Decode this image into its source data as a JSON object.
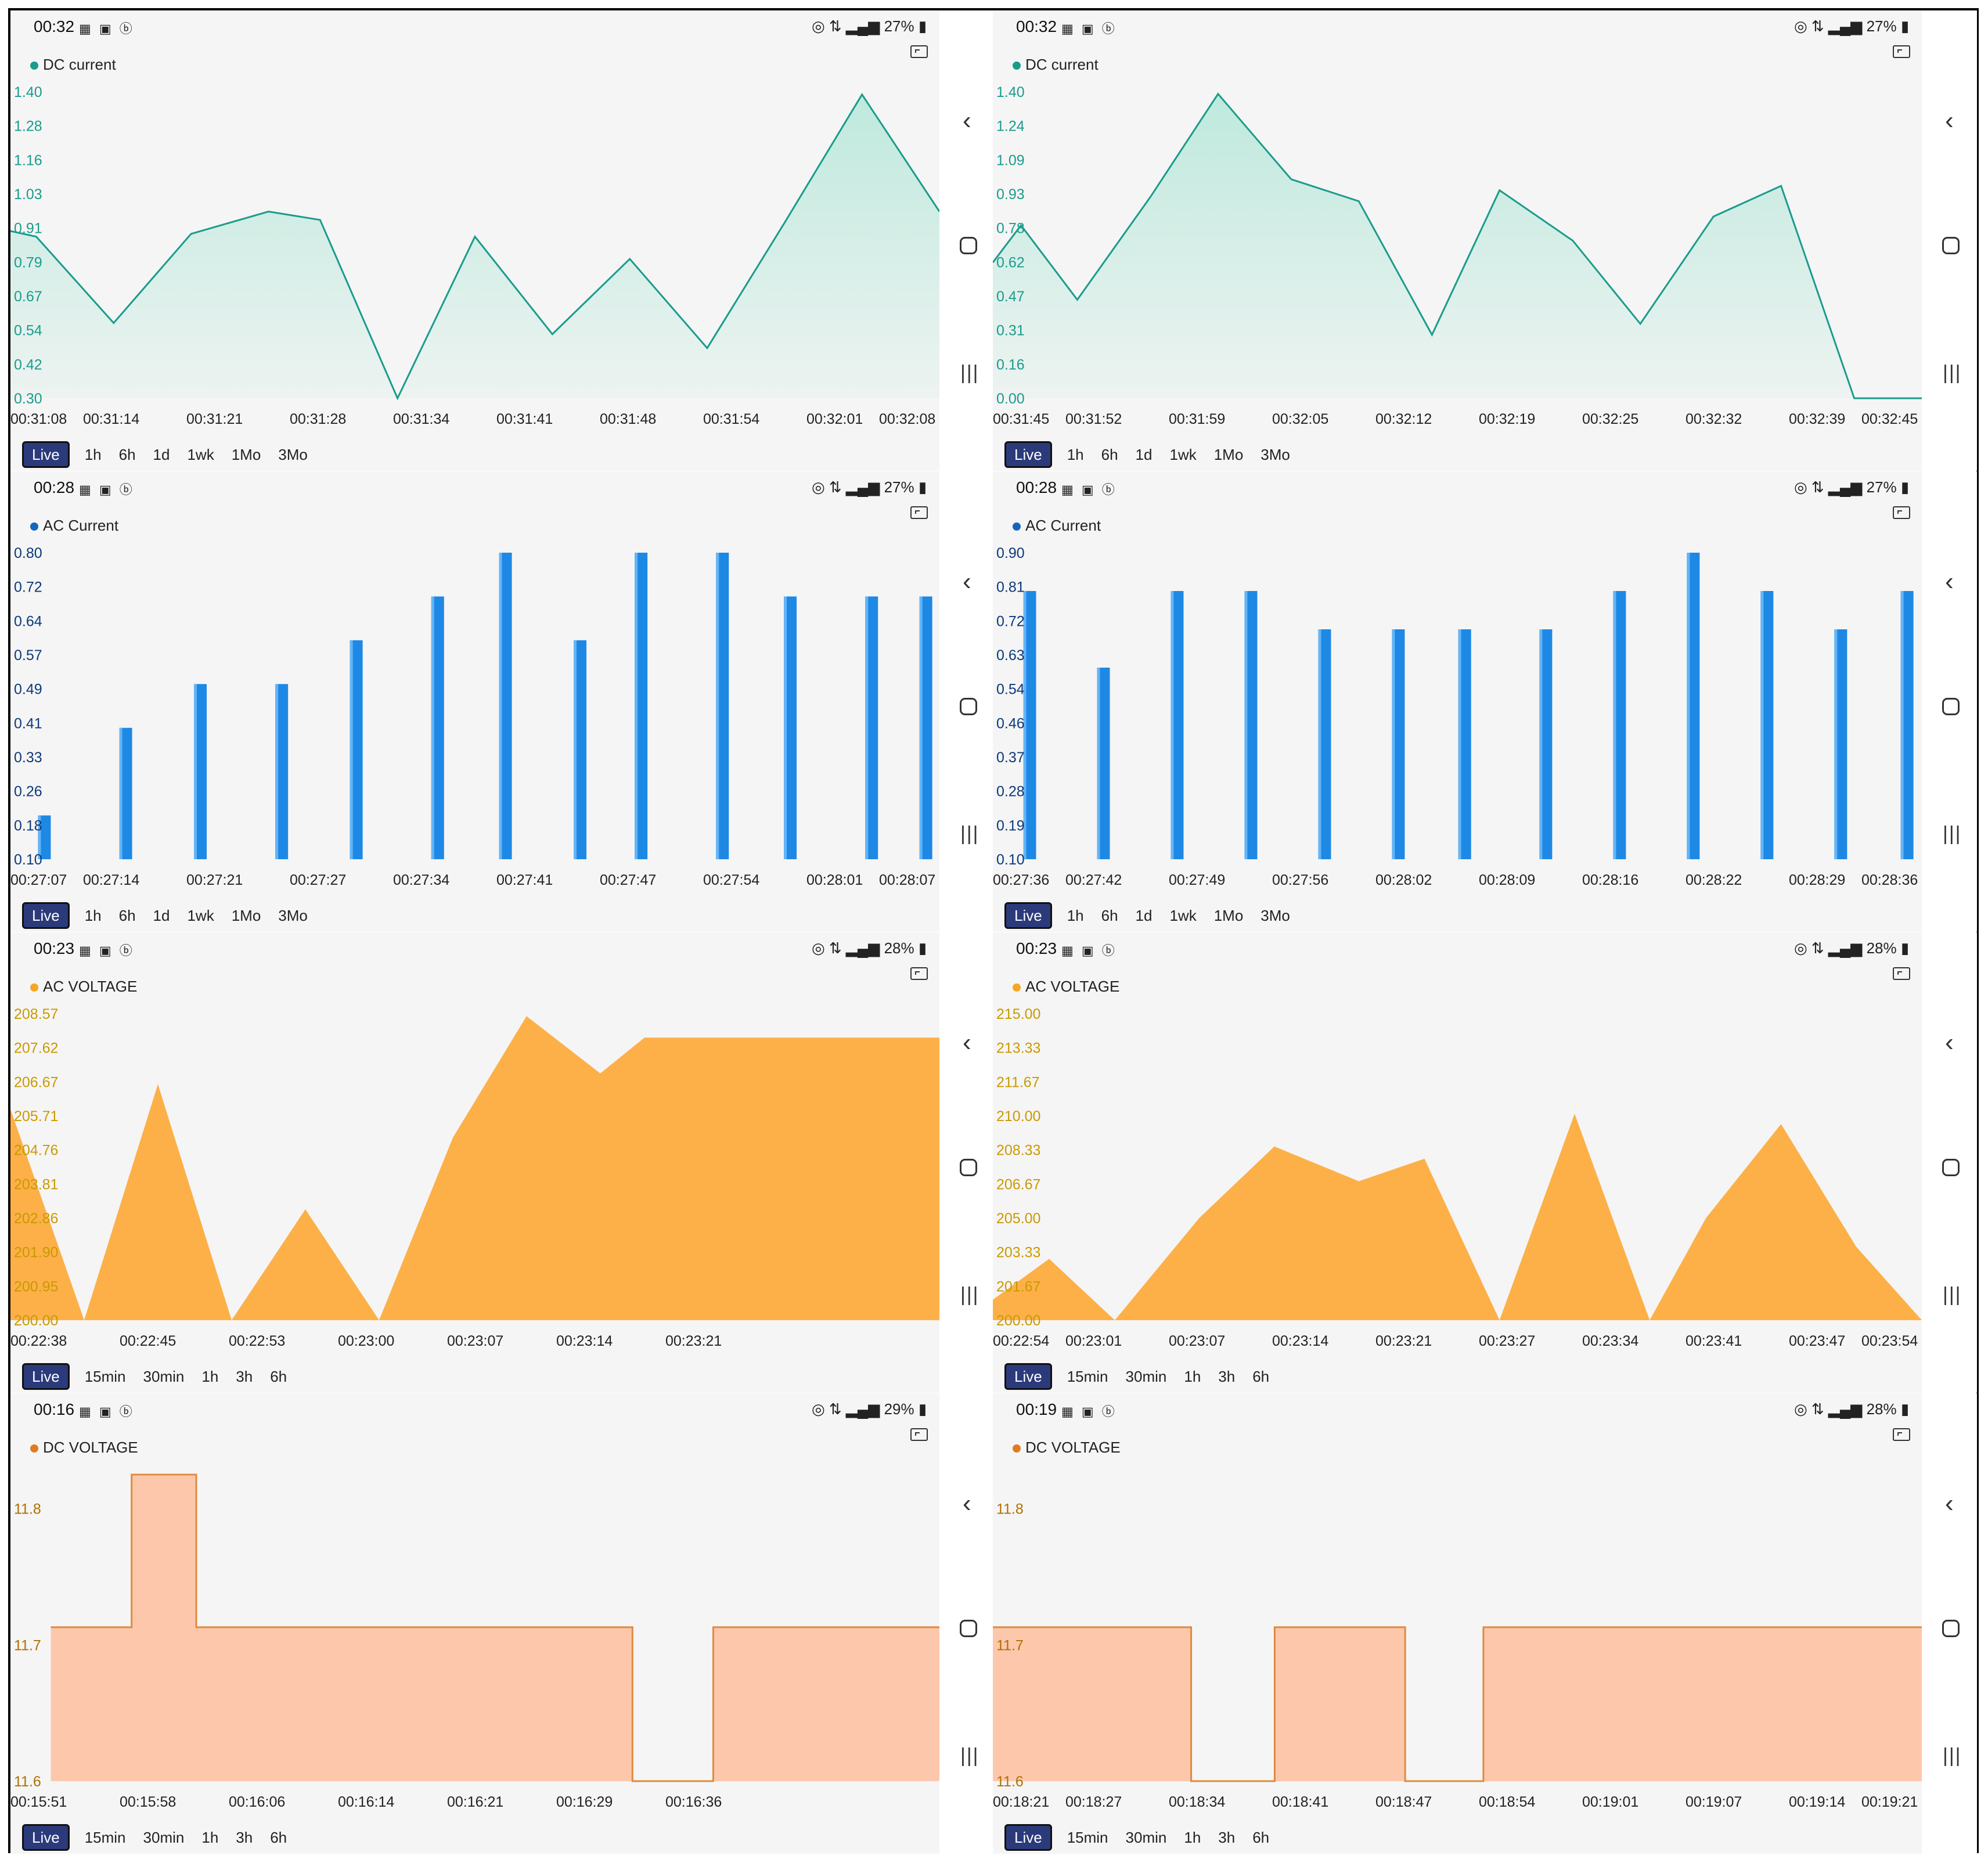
{
  "panels": [
    {
      "id": "dc-current-1",
      "status": {
        "time": "00:32",
        "battery": "27%"
      },
      "legend": "DC current",
      "ranges": [
        "Live",
        "1h",
        "6h",
        "1d",
        "1wk",
        "1Mo",
        "3Mo"
      ],
      "colors": {
        "dot": "#1a9c8c",
        "line": "#1a9c8c",
        "fill": "#bfe9dd",
        "tick": "#1a9c8c"
      },
      "chart_data": {
        "type": "area",
        "title": "DC current",
        "yticks": [
          "1.40",
          "1.28",
          "1.16",
          "1.03",
          "0.91",
          "0.79",
          "0.67",
          "0.54",
          "0.42",
          "0.30"
        ],
        "ylim": [
          0.3,
          1.4
        ],
        "xticks": [
          "00:31:08",
          "00:31:14",
          "00:31:21",
          "00:31:28",
          "00:31:34",
          "00:31:41",
          "00:31:48",
          "00:31:54",
          "00:32:01",
          "00:32:08"
        ],
        "x": [
          0,
          0.5,
          2,
          3.5,
          5,
          6,
          7.5,
          9,
          10.5,
          12,
          13.5,
          15,
          16.5,
          18
        ],
        "values": [
          0.9,
          0.88,
          0.57,
          0.89,
          0.97,
          0.94,
          0.3,
          0.88,
          0.53,
          0.8,
          0.48,
          0.93,
          1.39,
          0.97
        ]
      }
    },
    {
      "id": "dc-current-2",
      "status": {
        "time": "00:32",
        "battery": "27%"
      },
      "legend": "DC current",
      "ranges": [
        "Live",
        "1h",
        "6h",
        "1d",
        "1wk",
        "1Mo",
        "3Mo"
      ],
      "colors": {
        "dot": "#1a9c8c",
        "line": "#1a9c8c",
        "fill": "#bfe9dd",
        "tick": "#1a9c8c"
      },
      "chart_data": {
        "type": "area",
        "title": "DC current",
        "yticks": [
          "1.40",
          "1.24",
          "1.09",
          "0.93",
          "0.78",
          "0.62",
          "0.47",
          "0.31",
          "0.16",
          "0.00"
        ],
        "ylim": [
          0.0,
          1.4
        ],
        "xticks": [
          "00:31:45",
          "00:31:52",
          "00:31:59",
          "00:32:05",
          "00:32:12",
          "00:32:19",
          "00:32:25",
          "00:32:32",
          "00:32:39",
          "00:32:45"
        ],
        "x": [
          0,
          0.5,
          1.5,
          2.8,
          4,
          5.3,
          6.5,
          7.8,
          9,
          10.3,
          11.5,
          12.8,
          14,
          15.3,
          16.5
        ],
        "values": [
          0.62,
          0.79,
          0.45,
          0.92,
          1.39,
          1.0,
          0.9,
          0.29,
          0.95,
          0.72,
          0.34,
          0.83,
          0.97,
          0.0,
          0.0
        ]
      }
    },
    {
      "id": "ac-current-1",
      "status": {
        "time": "00:28",
        "battery": "27%"
      },
      "legend": "AC Current",
      "ranges": [
        "Live",
        "1h",
        "6h",
        "1d",
        "1wk",
        "1Mo",
        "3Mo"
      ],
      "colors": {
        "dot": "#1565c0",
        "bar": "#1e88e5",
        "tick": "#0d3a7a"
      },
      "chart_data": {
        "type": "bar",
        "title": "AC Current",
        "yticks": [
          "0.80",
          "0.72",
          "0.64",
          "0.57",
          "0.49",
          "0.41",
          "0.33",
          "0.26",
          "0.18",
          "0.10"
        ],
        "ylim": [
          0.1,
          0.8
        ],
        "xticks": [
          "00:27:07",
          "00:27:14",
          "00:27:21",
          "00:27:27",
          "00:27:34",
          "00:27:41",
          "00:27:47",
          "00:27:54",
          "00:28:01",
          "00:28:07"
        ],
        "x": [
          0.5,
          1.7,
          2.8,
          4.0,
          5.1,
          6.3,
          7.3,
          8.4,
          9.3,
          10.5,
          11.5,
          12.7,
          13.5
        ],
        "values": [
          0.2,
          0.4,
          0.5,
          0.5,
          0.6,
          0.7,
          0.8,
          0.6,
          0.8,
          0.8,
          0.7,
          0.7,
          0.7
        ]
      }
    },
    {
      "id": "ac-current-2",
      "status": {
        "time": "00:28",
        "battery": "27%"
      },
      "legend": "AC Current",
      "ranges": [
        "Live",
        "1h",
        "6h",
        "1d",
        "1wk",
        "1Mo",
        "3Mo"
      ],
      "colors": {
        "dot": "#1565c0",
        "bar": "#1e88e5",
        "tick": "#0d3a7a"
      },
      "chart_data": {
        "type": "bar",
        "title": "AC Current",
        "yticks": [
          "0.90",
          "0.81",
          "0.72",
          "0.63",
          "0.54",
          "0.46",
          "0.37",
          "0.28",
          "0.19",
          "0.10"
        ],
        "ylim": [
          0.1,
          0.9
        ],
        "xticks": [
          "00:27:36",
          "00:27:42",
          "00:27:49",
          "00:27:56",
          "00:28:02",
          "00:28:09",
          "00:28:16",
          "00:28:22",
          "00:28:29",
          "00:28:36"
        ],
        "x": [
          0.5,
          1.5,
          2.5,
          3.5,
          4.5,
          5.5,
          6.4,
          7.5,
          8.5,
          9.5,
          10.5,
          11.5,
          12.4
        ],
        "values": [
          0.8,
          0.6,
          0.8,
          0.8,
          0.7,
          0.7,
          0.7,
          0.7,
          0.8,
          0.9,
          0.8,
          0.7,
          0.8
        ]
      }
    },
    {
      "id": "ac-voltage-1",
      "status": {
        "time": "00:23",
        "battery": "28%"
      },
      "legend": "AC VOLTAGE",
      "ranges": [
        "Live",
        "15min",
        "30min",
        "1h",
        "3h",
        "6h"
      ],
      "colors": {
        "dot": "#f5a623",
        "fill": "#fdb048",
        "tick": "#c99a00"
      },
      "chart_data": {
        "type": "area",
        "title": "AC VOLTAGE",
        "yticks": [
          "208.57",
          "207.62",
          "206.67",
          "205.71",
          "204.76",
          "203.81",
          "202.86",
          "201.90",
          "200.95",
          "200.00"
        ],
        "ylim": [
          200.0,
          208.57
        ],
        "xticks": [
          "00:22:38",
          "00:22:45",
          "00:22:53",
          "00:23:00",
          "00:23:07",
          "00:23:14",
          "00:23:21"
        ],
        "x": [
          0,
          1,
          2,
          3,
          4,
          5,
          6,
          7,
          8,
          8.6,
          9.6,
          10.6,
          11.6,
          12.6
        ],
        "values": [
          205.9,
          200.0,
          206.6,
          200.0,
          203.1,
          200.0,
          205.1,
          208.5,
          206.9,
          207.9,
          207.9,
          207.9,
          207.9,
          207.9
        ]
      }
    },
    {
      "id": "ac-voltage-2",
      "status": {
        "time": "00:23",
        "battery": "28%"
      },
      "legend": "AC VOLTAGE",
      "ranges": [
        "Live",
        "15min",
        "30min",
        "1h",
        "3h",
        "6h"
      ],
      "colors": {
        "dot": "#f5a623",
        "fill": "#fdb048",
        "tick": "#c99a00"
      },
      "chart_data": {
        "type": "area",
        "title": "AC VOLTAGE",
        "yticks": [
          "215.00",
          "213.33",
          "211.67",
          "210.00",
          "208.33",
          "206.67",
          "205.00",
          "203.33",
          "201.67",
          "200.00"
        ],
        "ylim": [
          200.0,
          215.0
        ],
        "xticks": [
          "00:22:54",
          "00:23:01",
          "00:23:07",
          "00:23:14",
          "00:23:21",
          "00:23:27",
          "00:23:34",
          "00:23:41",
          "00:23:47",
          "00:23:54"
        ],
        "x": [
          0,
          0.6,
          1.3,
          2.2,
          3.0,
          3.9,
          4.6,
          5.4,
          6.2,
          7.0,
          7.6,
          8.4,
          9.2,
          9.9
        ],
        "values": [
          201.0,
          203.0,
          200.0,
          205.0,
          208.5,
          206.8,
          207.9,
          200.0,
          210.1,
          200.0,
          205.0,
          209.6,
          203.6,
          200.0
        ]
      }
    },
    {
      "id": "dc-voltage-1",
      "status": {
        "time": "00:16",
        "battery": "29%"
      },
      "legend": "DC VOLTAGE",
      "ranges": [
        "Live",
        "15min",
        "30min",
        "1h",
        "3h",
        "6h"
      ],
      "colors": {
        "dot": "#e07b20",
        "line": "#e08a3c",
        "fill": "#fdc7ac",
        "tick": "#b07000"
      },
      "chart_data": {
        "type": "area",
        "title": "DC VOLTAGE",
        "yticks": [
          "11.8",
          "11.7",
          "11.6"
        ],
        "ytick_values": [
          11.8,
          11.7,
          11.6
        ],
        "ylim": [
          11.6,
          11.825
        ],
        "xticks": [
          "00:15:51",
          "00:15:58",
          "00:16:06",
          "00:16:14",
          "00:16:21",
          "00:16:29",
          "00:16:36"
        ],
        "x": [
          0.5,
          1.5,
          1.5,
          2.3,
          2.3,
          7.7,
          7.7,
          8.7,
          8.7,
          11.5
        ],
        "values": [
          11.713,
          11.713,
          11.825,
          11.825,
          11.713,
          11.713,
          11.6,
          11.6,
          11.713,
          11.713
        ]
      }
    },
    {
      "id": "dc-voltage-2",
      "status": {
        "time": "00:19",
        "battery": "28%"
      },
      "legend": "DC VOLTAGE",
      "ranges": [
        "Live",
        "15min",
        "30min",
        "1h",
        "3h",
        "6h"
      ],
      "colors": {
        "dot": "#e07b20",
        "line": "#e08a3c",
        "fill": "#fdc7ac",
        "tick": "#b07000"
      },
      "chart_data": {
        "type": "area",
        "title": "DC VOLTAGE",
        "yticks": [
          "11.8",
          "11.7",
          "11.6"
        ],
        "ytick_values": [
          11.8,
          11.7,
          11.6
        ],
        "ylim": [
          11.6,
          11.825
        ],
        "xticks": [
          "00:18:21",
          "00:18:27",
          "00:18:34",
          "00:18:41",
          "00:18:47",
          "00:18:54",
          "00:19:01",
          "00:19:07",
          "00:19:14",
          "00:19:21"
        ],
        "x": [
          0,
          1.9,
          1.9,
          2.7,
          2.7,
          3.95,
          3.95,
          4.7,
          4.7,
          8.9
        ],
        "values": [
          11.713,
          11.713,
          11.6,
          11.6,
          11.713,
          11.713,
          11.6,
          11.6,
          11.713,
          11.713
        ]
      }
    }
  ]
}
